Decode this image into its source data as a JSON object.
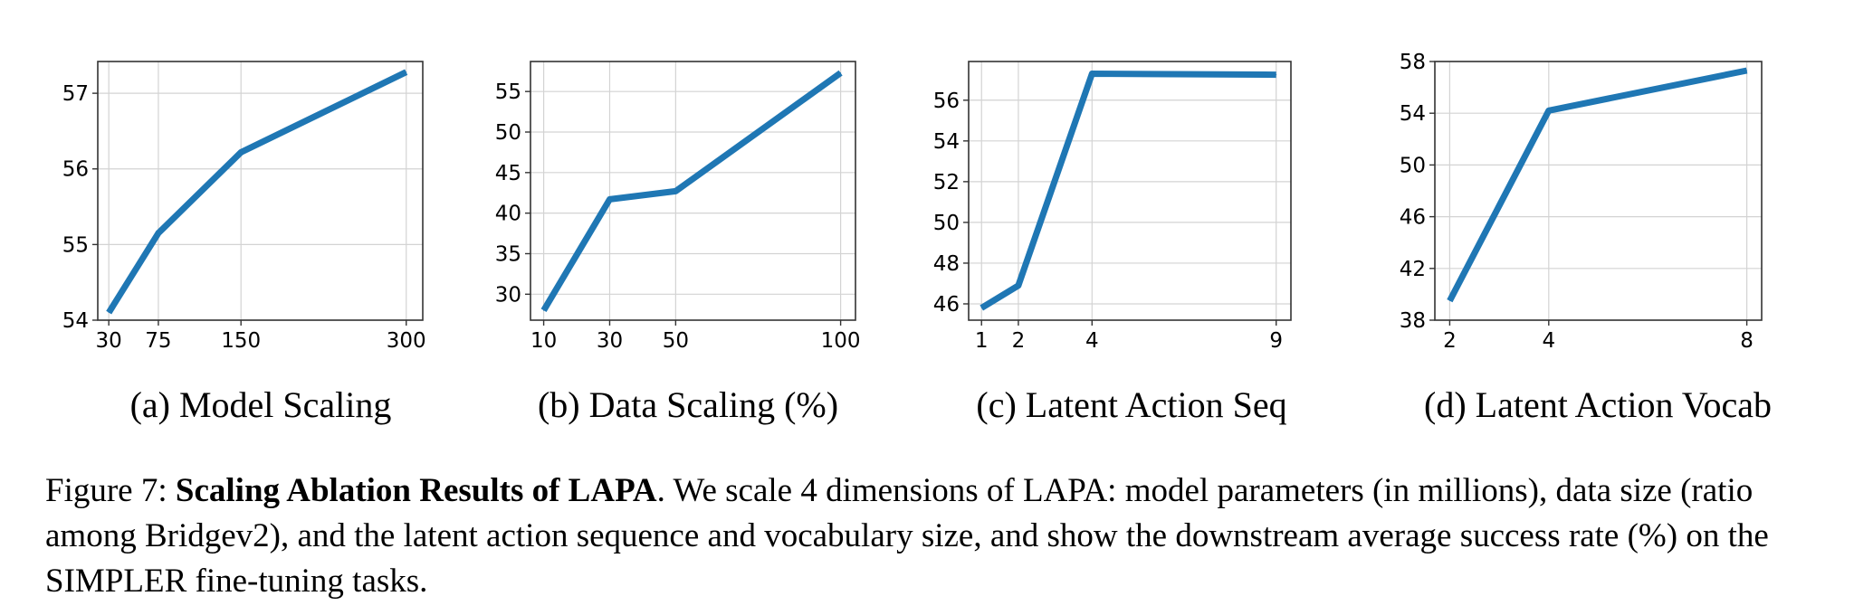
{
  "chart_data": [
    {
      "type": "line",
      "title": "(a) Model Scaling",
      "xlabel": "",
      "ylabel": "",
      "x": [
        30,
        75,
        150,
        300
      ],
      "series": [
        {
          "values": [
            54.1,
            55.15,
            56.22,
            57.28
          ]
        }
      ],
      "xticks": [
        30,
        75,
        150,
        300
      ],
      "yticks": [
        54,
        55,
        56,
        57
      ],
      "xlim": [
        20,
        315
      ],
      "ylim": [
        54.0,
        57.42
      ],
      "grid": true,
      "color": "#1f77b4"
    },
    {
      "type": "line",
      "title": "(b) Data Scaling (%)",
      "xlabel": "",
      "ylabel": "",
      "x": [
        10,
        30,
        50,
        100
      ],
      "series": [
        {
          "values": [
            28.0,
            41.7,
            42.7,
            57.3
          ]
        }
      ],
      "xticks": [
        10,
        30,
        50,
        100
      ],
      "yticks": [
        30,
        35,
        40,
        45,
        50,
        55
      ],
      "xlim": [
        6,
        104.5
      ],
      "ylim": [
        26.8,
        58.7
      ],
      "grid": true,
      "color": "#1f77b4"
    },
    {
      "type": "line",
      "title": "(c) Latent Action Seq",
      "xlabel": "",
      "ylabel": "",
      "x": [
        1,
        2,
        4,
        9
      ],
      "series": [
        {
          "values": [
            45.8,
            46.9,
            57.3,
            57.25
          ]
        }
      ],
      "xticks": [
        1,
        2,
        4,
        9
      ],
      "yticks": [
        46,
        48,
        50,
        52,
        54,
        56
      ],
      "xlim": [
        0.65,
        9.4
      ],
      "ylim": [
        45.2,
        57.9
      ],
      "grid": true,
      "color": "#1f77b4"
    },
    {
      "type": "line",
      "title": "(d) Latent Action Vocab",
      "xlabel": "",
      "ylabel": "",
      "x": [
        2,
        4,
        8
      ],
      "series": [
        {
          "values": [
            39.5,
            54.2,
            57.3
          ]
        }
      ],
      "xticks": [
        2,
        4,
        8
      ],
      "yticks": [
        38,
        42,
        46,
        50,
        54,
        58
      ],
      "xlim": [
        1.7,
        8.3
      ],
      "ylim": [
        38.0,
        58.0
      ],
      "grid": true,
      "color": "#1f77b4"
    }
  ],
  "caption": {
    "prefix": "Figure 7: ",
    "bold": "Scaling Ablation Results of LAPA",
    "rest": ". We scale 4 dimensions of LAPA: model parameters (in millions), data size (ratio among Bridgev2), and the latent action sequence and vocabulary size, and show the downstream average success rate (%) on the SIMPLER fine-tuning tasks."
  }
}
